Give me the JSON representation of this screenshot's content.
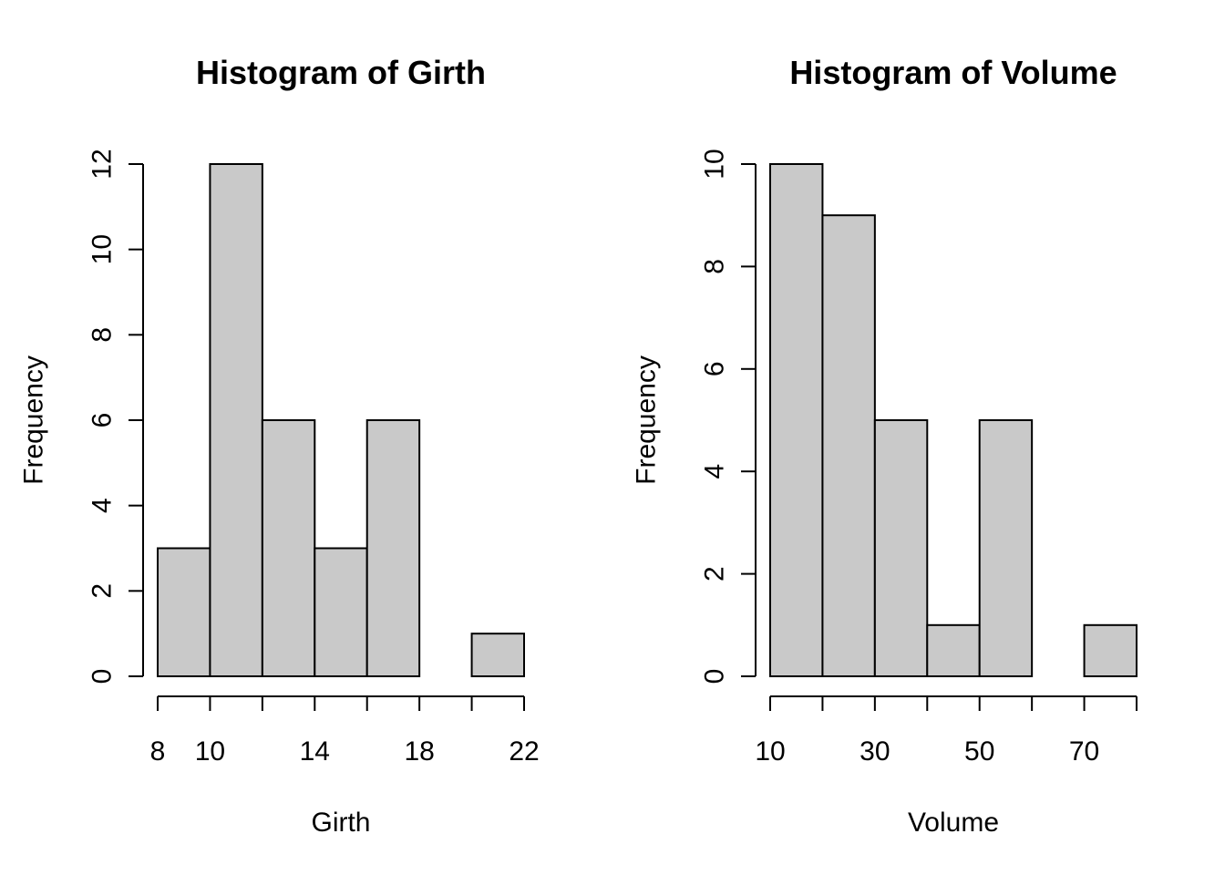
{
  "chart_data": [
    {
      "type": "bar",
      "title": "Histogram of Girth",
      "xlabel": "Girth",
      "ylabel": "Frequency",
      "bins": [
        [
          8,
          10
        ],
        [
          10,
          12
        ],
        [
          12,
          14
        ],
        [
          14,
          16
        ],
        [
          16,
          18
        ],
        [
          18,
          20
        ],
        [
          20,
          22
        ]
      ],
      "values": [
        3,
        12,
        6,
        3,
        6,
        0,
        1
      ],
      "xlim": [
        8,
        22
      ],
      "ylim": [
        0,
        12
      ],
      "x_ticks": [
        8,
        10,
        12,
        14,
        16,
        18,
        20,
        22
      ],
      "x_tick_labels": [
        "8",
        "10",
        "",
        "14",
        "",
        "18",
        "",
        "22"
      ],
      "y_ticks": [
        0,
        2,
        4,
        6,
        8,
        10,
        12
      ],
      "y_tick_labels": [
        "0",
        "2",
        "4",
        "6",
        "8",
        "10",
        "12"
      ],
      "bar_color": "#c9c9c9",
      "grid": false
    },
    {
      "type": "bar",
      "title": "Histogram of Volume",
      "xlabel": "Volume",
      "ylabel": "Frequency",
      "bins": [
        [
          10,
          20
        ],
        [
          20,
          30
        ],
        [
          30,
          40
        ],
        [
          40,
          50
        ],
        [
          50,
          60
        ],
        [
          60,
          70
        ],
        [
          70,
          80
        ]
      ],
      "values": [
        10,
        9,
        5,
        1,
        5,
        0,
        1
      ],
      "xlim": [
        10,
        80
      ],
      "ylim": [
        0,
        10
      ],
      "x_ticks": [
        10,
        20,
        30,
        40,
        50,
        60,
        70,
        80
      ],
      "x_tick_labels": [
        "10",
        "",
        "30",
        "",
        "50",
        "",
        "70",
        ""
      ],
      "y_ticks": [
        0,
        2,
        4,
        6,
        8,
        10
      ],
      "y_tick_labels": [
        "0",
        "2",
        "4",
        "6",
        "8",
        "10"
      ],
      "bar_color": "#c9c9c9",
      "grid": false
    }
  ]
}
